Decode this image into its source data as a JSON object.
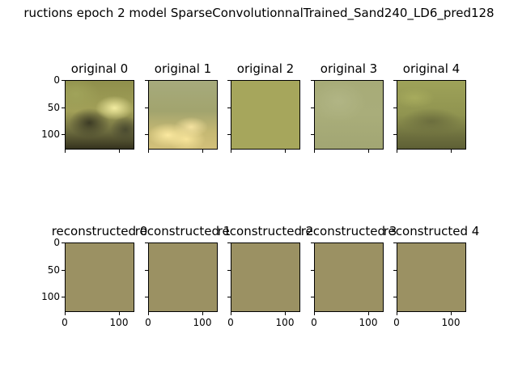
{
  "chart_data": {
    "type": "image-grid",
    "suptitle": "ructions epoch 2 model SparseConvolutionnalTrained_Sand240_LD6_pred128",
    "rows": 2,
    "cols": 5,
    "image_extent": [
      0,
      128
    ],
    "panels": [
      {
        "title": "original 0",
        "row": 0,
        "col": 0,
        "kind": "original",
        "yticks": [
          0,
          50,
          100
        ],
        "xticks": [],
        "ytick_labels_visible": true,
        "xtick_labels_visible": false
      },
      {
        "title": "original 1",
        "row": 0,
        "col": 1,
        "kind": "original",
        "yticks": [],
        "xticks": [],
        "ytick_labels_visible": false,
        "xtick_labels_visible": false
      },
      {
        "title": "original 2",
        "row": 0,
        "col": 2,
        "kind": "original",
        "yticks": [],
        "xticks": [],
        "ytick_labels_visible": false,
        "xtick_labels_visible": false
      },
      {
        "title": "original 3",
        "row": 0,
        "col": 3,
        "kind": "original",
        "yticks": [],
        "xticks": [],
        "ytick_labels_visible": false,
        "xtick_labels_visible": false
      },
      {
        "title": "original 4",
        "row": 0,
        "col": 4,
        "kind": "original",
        "yticks": [],
        "xticks": [],
        "ytick_labels_visible": false,
        "xtick_labels_visible": false
      },
      {
        "title": "reconstructed 0",
        "row": 1,
        "col": 0,
        "kind": "reconstructed",
        "yticks": [
          0,
          50,
          100
        ],
        "xticks": [
          0,
          100
        ],
        "ytick_labels_visible": true,
        "xtick_labels_visible": true
      },
      {
        "title": "reconstructed 1",
        "row": 1,
        "col": 1,
        "kind": "reconstructed",
        "yticks": [],
        "xticks": [
          0,
          100
        ],
        "ytick_labels_visible": false,
        "xtick_labels_visible": true
      },
      {
        "title": "reconstructed 2",
        "row": 1,
        "col": 2,
        "kind": "reconstructed",
        "yticks": [],
        "xticks": [
          0,
          100
        ],
        "ytick_labels_visible": false,
        "xtick_labels_visible": true
      },
      {
        "title": "reconstructed 3",
        "row": 1,
        "col": 3,
        "kind": "reconstructed",
        "yticks": [],
        "xticks": [
          0,
          100
        ],
        "ytick_labels_visible": false,
        "xtick_labels_visible": true
      },
      {
        "title": "reconstructed 4",
        "row": 1,
        "col": 4,
        "kind": "reconstructed",
        "yticks": [],
        "xticks": [
          0,
          100
        ],
        "ytick_labels_visible": false,
        "xtick_labels_visible": true
      }
    ],
    "colors": {
      "reconstructed_fill": "#9b9163",
      "original_2_fill": "#a6a65c",
      "original_3_fill": "#a9ad7a",
      "original_4_fill": "#959a55",
      "original_0_base": "#8e8f4c",
      "original_1_base": "#a3a874"
    }
  }
}
